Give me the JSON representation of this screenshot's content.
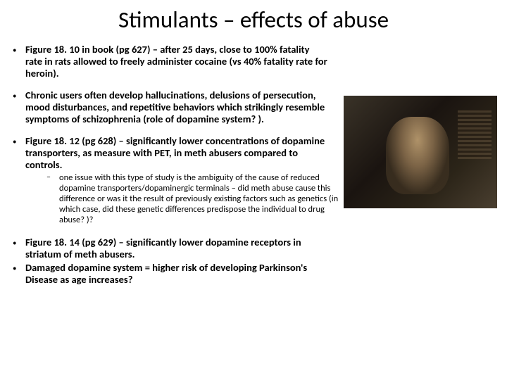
{
  "title": "Stimulants – effects of abuse",
  "bullets": {
    "b1": "Figure 18. 10 in book (pg 627) – after 25 days, close to 100% fatality rate in rats allowed to freely administer cocaine (vs 40% fatality rate for heroin).",
    "b2": "Chronic users often develop hallucinations, delusions of persecution, mood disturbances, and repetitive behaviors which strikingly resemble symptoms of schizophrenia (role of dopamine system? ).",
    "b3": "Figure 18. 12 (pg 628) – significantly lower concentrations of dopamine transporters, as measure with PET, in meth abusers compared to controls.",
    "b3_sub": "one issue with this type of study is the ambiguity of the cause of reduced dopamine transporters/dopaminergic terminals – did meth abuse cause this difference or was it the result of previously existing factors such as genetics (in which case, did these genetic differences predispose the individual to drug abuse? )?",
    "b4": "Figure 18. 14 (pg 629) – significantly lower dopamine receptors in striatum of meth abusers.",
    "b5": "Damaged dopamine system = higher risk of developing Parkinson's Disease as age increases?"
  },
  "image": {
    "name": "movie-still-photo",
    "description": "dark film still of seated man"
  }
}
